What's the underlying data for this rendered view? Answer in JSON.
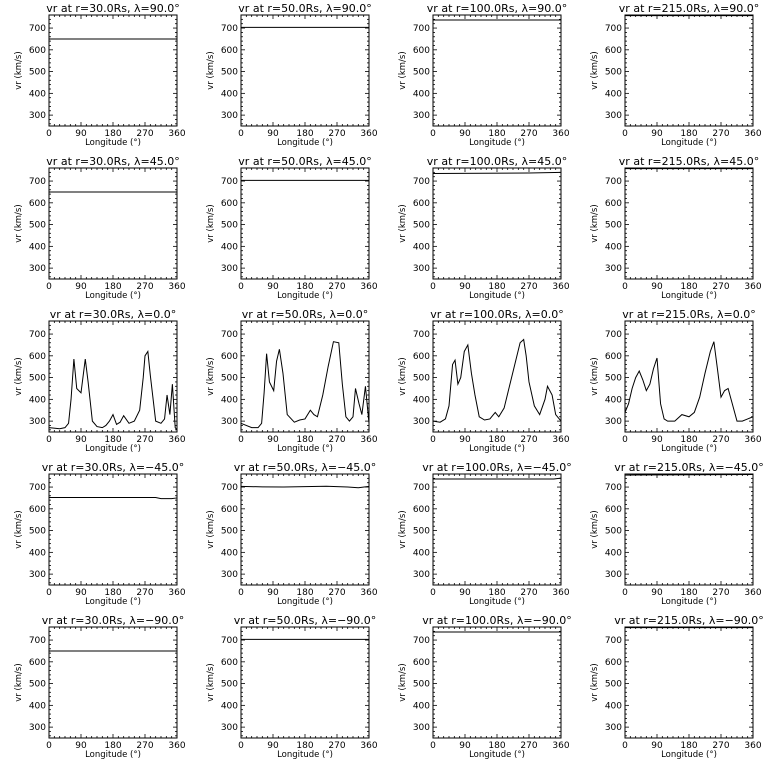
{
  "chart_data": [
    {
      "type": "line",
      "title": "vr at r=30.0Rs, λ=90.0°",
      "xlabel": "Longitude (°)",
      "ylabel": "vr (km/s)",
      "xlim": [
        0,
        360
      ],
      "ylim": [
        250,
        760
      ],
      "xticks": [
        0,
        90,
        180,
        270,
        360
      ],
      "yticks": [
        300,
        400,
        500,
        600,
        700
      ],
      "x": [
        0,
        360
      ],
      "values": [
        650,
        650
      ]
    },
    {
      "type": "line",
      "title": "vr at r=50.0Rs, λ=90.0°",
      "xlabel": "Longitude (°)",
      "ylabel": "vr (km/s)",
      "xlim": [
        0,
        360
      ],
      "ylim": [
        250,
        760
      ],
      "xticks": [
        0,
        90,
        180,
        270,
        360
      ],
      "yticks": [
        300,
        400,
        500,
        600,
        700
      ],
      "x": [
        0,
        360
      ],
      "values": [
        703,
        703
      ]
    },
    {
      "type": "line",
      "title": "vr at r=100.0Rs, λ=90.0°",
      "xlabel": "Longitude (°)",
      "ylabel": "vr (km/s)",
      "xlim": [
        0,
        360
      ],
      "ylim": [
        250,
        760
      ],
      "xticks": [
        0,
        90,
        180,
        270,
        360
      ],
      "yticks": [
        300,
        400,
        500,
        600,
        700
      ],
      "x": [
        0,
        360
      ],
      "values": [
        737,
        737
      ]
    },
    {
      "type": "line",
      "title": "vr at r=215.0Rs, λ=90.0°",
      "xlabel": "Longitude (°)",
      "ylabel": "vr (km/s)",
      "xlim": [
        0,
        360
      ],
      "ylim": [
        250,
        760
      ],
      "xticks": [
        0,
        90,
        180,
        270,
        360
      ],
      "yticks": [
        300,
        400,
        500,
        600,
        700
      ],
      "x": [
        0,
        360
      ],
      "values": [
        757,
        757
      ]
    },
    {
      "type": "line",
      "title": "vr at r=30.0Rs, λ=45.0°",
      "xlabel": "Longitude (°)",
      "ylabel": "vr (km/s)",
      "xlim": [
        0,
        360
      ],
      "ylim": [
        250,
        760
      ],
      "xticks": [
        0,
        90,
        180,
        270,
        360
      ],
      "yticks": [
        300,
        400,
        500,
        600,
        700
      ],
      "x": [
        0,
        360
      ],
      "values": [
        650,
        650
      ]
    },
    {
      "type": "line",
      "title": "vr at r=50.0Rs, λ=45.0°",
      "xlabel": "Longitude (°)",
      "ylabel": "vr (km/s)",
      "xlim": [
        0,
        360
      ],
      "ylim": [
        250,
        760
      ],
      "xticks": [
        0,
        90,
        180,
        270,
        360
      ],
      "yticks": [
        300,
        400,
        500,
        600,
        700
      ],
      "x": [
        0,
        360
      ],
      "values": [
        703,
        703
      ]
    },
    {
      "type": "line",
      "title": "vr at r=100.0Rs, λ=45.0°",
      "xlabel": "Longitude (°)",
      "ylabel": "vr (km/s)",
      "xlim": [
        0,
        360
      ],
      "ylim": [
        250,
        760
      ],
      "xticks": [
        0,
        90,
        180,
        270,
        360
      ],
      "yticks": [
        300,
        400,
        500,
        600,
        700
      ],
      "x": [
        0,
        270,
        360
      ],
      "values": [
        735,
        737,
        740
      ]
    },
    {
      "type": "line",
      "title": "vr at r=215.0Rs, λ=45.0°",
      "xlabel": "Longitude (°)",
      "ylabel": "vr (km/s)",
      "xlim": [
        0,
        360
      ],
      "ylim": [
        250,
        760
      ],
      "xticks": [
        0,
        90,
        180,
        270,
        360
      ],
      "yticks": [
        300,
        400,
        500,
        600,
        700
      ],
      "x": [
        0,
        360
      ],
      "values": [
        757,
        757
      ]
    },
    {
      "type": "line",
      "title": "vr at r=30.0Rs, λ=0.0°",
      "xlabel": "Longitude (°)",
      "ylabel": "vr (km/s)",
      "xlim": [
        0,
        360
      ],
      "ylim": [
        250,
        760
      ],
      "xticks": [
        0,
        90,
        180,
        270,
        360
      ],
      "yticks": [
        300,
        400,
        500,
        600,
        700
      ],
      "x": [
        0,
        30,
        45,
        55,
        62,
        70,
        78,
        90,
        102,
        110,
        122,
        135,
        150,
        160,
        170,
        180,
        190,
        200,
        210,
        225,
        240,
        255,
        265,
        270,
        278,
        285,
        300,
        315,
        325,
        332,
        340,
        347,
        355,
        360
      ],
      "values": [
        270,
        265,
        270,
        290,
        400,
        585,
        450,
        430,
        585,
        480,
        300,
        275,
        270,
        280,
        300,
        330,
        285,
        295,
        325,
        290,
        300,
        350,
        500,
        600,
        620,
        510,
        300,
        290,
        310,
        420,
        330,
        470,
        270,
        260
      ]
    },
    {
      "type": "line",
      "title": "vr at r=50.0Rs, λ=0.0°",
      "xlabel": "Longitude (°)",
      "ylabel": "vr (km/s)",
      "xlim": [
        0,
        360
      ],
      "ylim": [
        250,
        760
      ],
      "xticks": [
        0,
        90,
        180,
        270,
        360
      ],
      "yticks": [
        300,
        400,
        500,
        600,
        700
      ],
      "x": [
        0,
        30,
        48,
        58,
        65,
        72,
        80,
        92,
        100,
        108,
        118,
        130,
        150,
        165,
        180,
        195,
        205,
        215,
        230,
        245,
        260,
        275,
        285,
        295,
        305,
        315,
        322,
        332,
        340,
        350,
        360
      ],
      "values": [
        290,
        270,
        270,
        290,
        430,
        610,
        480,
        440,
        575,
        630,
        520,
        330,
        295,
        305,
        310,
        350,
        330,
        320,
        420,
        550,
        665,
        660,
        470,
        320,
        300,
        320,
        450,
        380,
        330,
        460,
        290
      ]
    },
    {
      "type": "line",
      "title": "vr at r=100.0Rs, λ=0.0°",
      "xlabel": "Longitude (°)",
      "ylabel": "vr (km/s)",
      "xlim": [
        0,
        360
      ],
      "ylim": [
        250,
        760
      ],
      "xticks": [
        0,
        90,
        180,
        270,
        360
      ],
      "yticks": [
        300,
        400,
        500,
        600,
        700
      ],
      "x": [
        0,
        20,
        35,
        45,
        55,
        62,
        70,
        78,
        88,
        98,
        108,
        118,
        130,
        145,
        160,
        175,
        185,
        200,
        215,
        230,
        245,
        255,
        262,
        270,
        285,
        300,
        315,
        322,
        335,
        345,
        360
      ],
      "values": [
        300,
        295,
        310,
        370,
        560,
        580,
        470,
        500,
        620,
        650,
        520,
        420,
        320,
        305,
        310,
        340,
        320,
        360,
        460,
        560,
        660,
        675,
        600,
        480,
        370,
        330,
        400,
        460,
        420,
        330,
        300
      ]
    },
    {
      "type": "line",
      "title": "vr at r=215.0Rs, λ=0.0°",
      "xlabel": "Longitude (°)",
      "ylabel": "vr (km/s)",
      "xlim": [
        0,
        360
      ],
      "ylim": [
        250,
        760
      ],
      "xticks": [
        0,
        90,
        180,
        270,
        360
      ],
      "yticks": [
        300,
        400,
        500,
        600,
        700
      ],
      "x": [
        0,
        10,
        20,
        30,
        40,
        50,
        60,
        70,
        80,
        90,
        100,
        110,
        120,
        140,
        160,
        180,
        195,
        210,
        225,
        240,
        250,
        260,
        270,
        280,
        290,
        300,
        315,
        330,
        345,
        360
      ],
      "values": [
        340,
        380,
        450,
        500,
        530,
        490,
        440,
        470,
        540,
        590,
        380,
        310,
        300,
        300,
        330,
        320,
        340,
        410,
        520,
        620,
        665,
        540,
        410,
        440,
        450,
        390,
        300,
        300,
        310,
        320
      ]
    },
    {
      "type": "line",
      "title": "vr at r=30.0Rs, λ=−45.0°",
      "xlabel": "Longitude (°)",
      "ylabel": "vr (km/s)",
      "xlim": [
        0,
        360
      ],
      "ylim": [
        250,
        760
      ],
      "xticks": [
        0,
        90,
        180,
        270,
        360
      ],
      "yticks": [
        300,
        400,
        500,
        600,
        700
      ],
      "x": [
        0,
        300,
        315,
        345,
        360
      ],
      "values": [
        652,
        652,
        647,
        647,
        650
      ]
    },
    {
      "type": "line",
      "title": "vr at r=50.0Rs, λ=−45.0°",
      "xlabel": "Longitude (°)",
      "ylabel": "vr (km/s)",
      "xlim": [
        0,
        360
      ],
      "ylim": [
        250,
        760
      ],
      "xticks": [
        0,
        90,
        180,
        270,
        360
      ],
      "yticks": [
        300,
        400,
        500,
        600,
        700
      ],
      "x": [
        0,
        60,
        120,
        180,
        240,
        300,
        330,
        360
      ],
      "values": [
        703,
        701,
        700,
        702,
        704,
        700,
        697,
        703
      ]
    },
    {
      "type": "line",
      "title": "vr at r=100.0Rs, λ=−45.0°",
      "xlabel": "Longitude (°)",
      "ylabel": "vr (km/s)",
      "xlim": [
        0,
        360
      ],
      "ylim": [
        250,
        760
      ],
      "xticks": [
        0,
        90,
        180,
        270,
        360
      ],
      "yticks": [
        300,
        400,
        500,
        600,
        700
      ],
      "x": [
        0,
        340,
        360
      ],
      "values": [
        737,
        737,
        741
      ]
    },
    {
      "type": "line",
      "title": "vr at r=215.0Rs, λ=−45.0°",
      "xlabel": "Longitude (°)",
      "ylabel": "vr (km/s)",
      "xlim": [
        0,
        360
      ],
      "ylim": [
        250,
        760
      ],
      "xticks": [
        0,
        90,
        180,
        270,
        360
      ],
      "yticks": [
        300,
        400,
        500,
        600,
        700
      ],
      "x": [
        0,
        360
      ],
      "values": [
        755,
        758
      ]
    },
    {
      "type": "line",
      "title": "vr at r=30.0Rs, λ=−90.0°",
      "xlabel": "Longitude (°)",
      "ylabel": "vr (km/s)",
      "xlim": [
        0,
        360
      ],
      "ylim": [
        250,
        760
      ],
      "xticks": [
        0,
        90,
        180,
        270,
        360
      ],
      "yticks": [
        300,
        400,
        500,
        600,
        700
      ],
      "x": [
        0,
        360
      ],
      "values": [
        650,
        650
      ]
    },
    {
      "type": "line",
      "title": "vr at r=50.0Rs, λ=−90.0°",
      "xlabel": "Longitude (°)",
      "ylabel": "vr (km/s)",
      "xlim": [
        0,
        360
      ],
      "ylim": [
        250,
        760
      ],
      "xticks": [
        0,
        90,
        180,
        270,
        360
      ],
      "yticks": [
        300,
        400,
        500,
        600,
        700
      ],
      "x": [
        0,
        360
      ],
      "values": [
        703,
        703
      ]
    },
    {
      "type": "line",
      "title": "vr at r=100.0Rs, λ=−90.0°",
      "xlabel": "Longitude (°)",
      "ylabel": "vr (km/s)",
      "xlim": [
        0,
        360
      ],
      "ylim": [
        250,
        760
      ],
      "xticks": [
        0,
        90,
        180,
        270,
        360
      ],
      "yticks": [
        300,
        400,
        500,
        600,
        700
      ],
      "x": [
        0,
        360
      ],
      "values": [
        737,
        737
      ]
    },
    {
      "type": "line",
      "title": "vr at r=215.0Rs, λ=−90.0°",
      "xlabel": "Longitude (°)",
      "ylabel": "vr (km/s)",
      "xlim": [
        0,
        360
      ],
      "ylim": [
        250,
        760
      ],
      "xticks": [
        0,
        90,
        180,
        270,
        360
      ],
      "yticks": [
        300,
        400,
        500,
        600,
        700
      ],
      "x": [
        0,
        360
      ],
      "values": [
        757,
        757
      ]
    }
  ]
}
